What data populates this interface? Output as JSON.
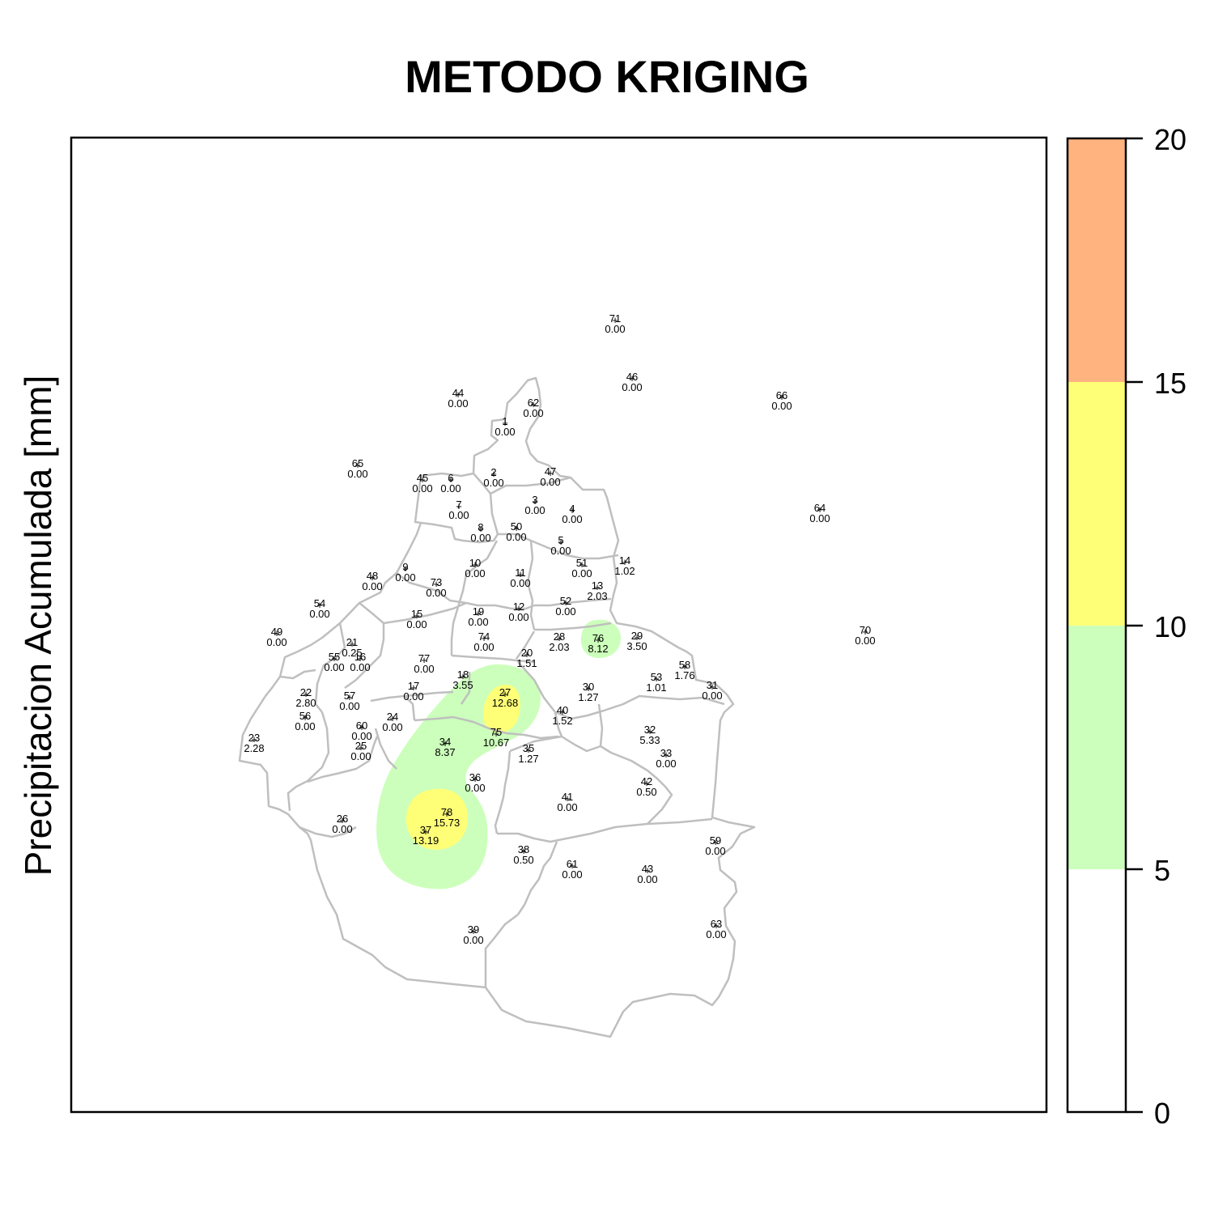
{
  "title": "METODO KRIGING",
  "ylabel": "Precipitacion Acumulada [mm]",
  "legend": {
    "breaks": [
      "0",
      "5",
      "10",
      "15",
      "20"
    ],
    "classes": [
      {
        "range": "0-5",
        "color": "#ffffff"
      },
      {
        "range": "5-10",
        "color": "#ccffbb"
      },
      {
        "range": "10-15",
        "color": "#ffff77"
      },
      {
        "range": "15-20",
        "color": "#ffb37f"
      }
    ]
  },
  "colors": {
    "boundary": "#bfbfbf",
    "frame": "#000000"
  },
  "stations": [
    {
      "id": "1",
      "value": "0.00"
    },
    {
      "id": "2",
      "value": "0.00"
    },
    {
      "id": "3",
      "value": "0.00"
    },
    {
      "id": "4",
      "value": "0.00"
    },
    {
      "id": "5",
      "value": "0.00"
    },
    {
      "id": "6",
      "value": "0.00"
    },
    {
      "id": "7",
      "value": "0.00"
    },
    {
      "id": "8",
      "value": "0.00"
    },
    {
      "id": "9",
      "value": "0.00"
    },
    {
      "id": "10",
      "value": "0.00"
    },
    {
      "id": "11",
      "value": "0.00"
    },
    {
      "id": "12",
      "value": "0.00"
    },
    {
      "id": "13",
      "value": "2.03"
    },
    {
      "id": "14",
      "value": "1.02"
    },
    {
      "id": "15",
      "value": "0.00"
    },
    {
      "id": "16",
      "value": "0.00"
    },
    {
      "id": "17",
      "value": "0.00"
    },
    {
      "id": "18",
      "value": "3.55"
    },
    {
      "id": "19",
      "value": "0.00"
    },
    {
      "id": "20",
      "value": "1.51"
    },
    {
      "id": "21",
      "value": "0.25"
    },
    {
      "id": "22",
      "value": "2.80"
    },
    {
      "id": "23",
      "value": "2.28"
    },
    {
      "id": "24",
      "value": "0.00"
    },
    {
      "id": "25",
      "value": "0.00"
    },
    {
      "id": "26",
      "value": "0.00"
    },
    {
      "id": "27",
      "value": "12.68"
    },
    {
      "id": "28",
      "value": "2.03"
    },
    {
      "id": "29",
      "value": "3.50"
    },
    {
      "id": "30",
      "value": "1.27"
    },
    {
      "id": "31",
      "value": "0.00"
    },
    {
      "id": "32",
      "value": "5.33"
    },
    {
      "id": "33",
      "value": "0.00"
    },
    {
      "id": "34",
      "value": "8.37"
    },
    {
      "id": "35",
      "value": "1.27"
    },
    {
      "id": "36",
      "value": "0.00"
    },
    {
      "id": "37",
      "value": "13.19"
    },
    {
      "id": "38",
      "value": "0.50"
    },
    {
      "id": "39",
      "value": "0.00"
    },
    {
      "id": "40",
      "value": "1.52"
    },
    {
      "id": "41",
      "value": "0.00"
    },
    {
      "id": "42",
      "value": "0.50"
    },
    {
      "id": "43",
      "value": "0.00"
    },
    {
      "id": "44",
      "value": "0.00"
    },
    {
      "id": "45",
      "value": "0.00"
    },
    {
      "id": "46",
      "value": "0.00"
    },
    {
      "id": "47",
      "value": "0.00"
    },
    {
      "id": "48",
      "value": "0.00"
    },
    {
      "id": "49",
      "value": "0.00"
    },
    {
      "id": "50",
      "value": "0.00"
    },
    {
      "id": "51",
      "value": "0.00"
    },
    {
      "id": "52",
      "value": "0.00"
    },
    {
      "id": "53",
      "value": "1.01"
    },
    {
      "id": "54",
      "value": "0.00"
    },
    {
      "id": "55",
      "value": "0.00"
    },
    {
      "id": "56",
      "value": "0.00"
    },
    {
      "id": "57",
      "value": "0.00"
    },
    {
      "id": "58",
      "value": "1.76"
    },
    {
      "id": "59",
      "value": "0.00"
    },
    {
      "id": "60",
      "value": "0.00"
    },
    {
      "id": "61",
      "value": "0.00"
    },
    {
      "id": "62",
      "value": "0.00"
    },
    {
      "id": "63",
      "value": "0.00"
    },
    {
      "id": "64",
      "value": "0.00"
    },
    {
      "id": "65",
      "value": "0.00"
    },
    {
      "id": "66",
      "value": "0.00"
    },
    {
      "id": "70",
      "value": "0.00"
    },
    {
      "id": "71",
      "value": "0.00"
    },
    {
      "id": "73",
      "value": "0.00"
    },
    {
      "id": "74",
      "value": "0.00"
    },
    {
      "id": "75",
      "value": "10.67"
    },
    {
      "id": "76",
      "value": "8.12"
    },
    {
      "id": "77",
      "value": "0.00"
    },
    {
      "id": "78",
      "value": "15.73"
    }
  ]
}
